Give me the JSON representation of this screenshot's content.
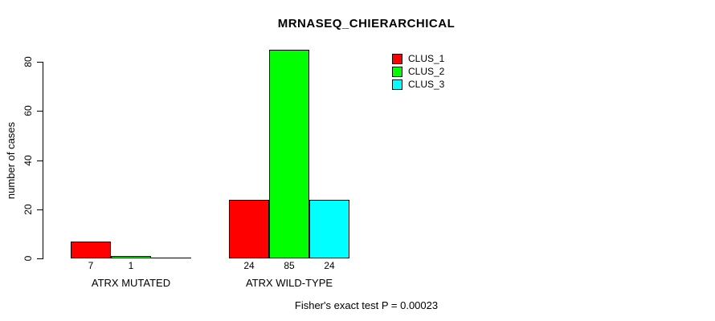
{
  "chart_data": {
    "type": "bar",
    "title": "MRNASEQ_CHIERARCHICAL",
    "ylabel": "number of cases",
    "xlabel": "",
    "categories": [
      "ATRX MUTATED",
      "ATRX WILD-TYPE"
    ],
    "series": [
      {
        "name": "CLUS_1",
        "color": "#ff0000",
        "values": [
          7,
          24
        ]
      },
      {
        "name": "CLUS_2",
        "color": "#00ff00",
        "values": [
          1,
          85
        ]
      },
      {
        "name": "CLUS_3",
        "color": "#00ffff",
        "values": [
          0,
          24
        ]
      }
    ],
    "bar_value_labels": [
      [
        "7",
        "24"
      ],
      [
        "1",
        "85"
      ],
      [
        "",
        "24"
      ]
    ],
    "yticks": [
      0,
      20,
      40,
      60,
      80
    ],
    "ylim": [
      0,
      85
    ],
    "grid": false,
    "legend_position": "top-right",
    "annotations": [
      "Fisher's exact test P = 0.00023"
    ]
  },
  "colors": {
    "background": "#ffffff",
    "axis": "#000000",
    "text": "#000000"
  }
}
